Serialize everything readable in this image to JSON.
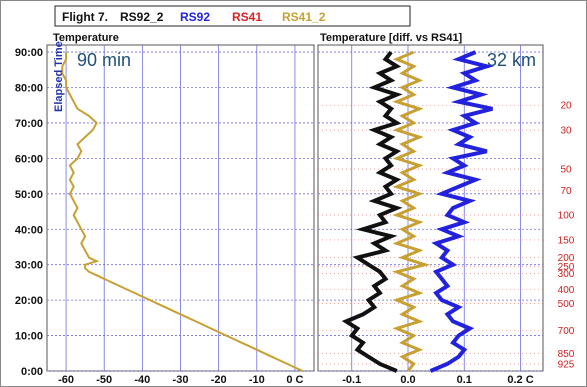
{
  "legend": {
    "flight": "Flight 7.",
    "items": [
      {
        "label": "RS92_2",
        "color": "#111111"
      },
      {
        "label": "RS92",
        "color": "#2222dd"
      },
      {
        "label": "RS41",
        "color": "#dd2222"
      },
      {
        "label": "RS41_2",
        "color": "#c8a032"
      }
    ]
  },
  "chart_data": [
    {
      "type": "line",
      "title": "Temperature",
      "annotation": "90 min",
      "ylabel": "Elapsed Time",
      "xunit_label": "0 C",
      "xticks": [
        -60,
        -50,
        -40,
        -30,
        -20,
        -10,
        0
      ],
      "xtick_labels": [
        "-60",
        "-50",
        "-40",
        "-30",
        "-20",
        "-10",
        "0 C"
      ],
      "xlim": [
        -65,
        5
      ],
      "ylim": [
        0,
        92
      ],
      "yticks": [
        0,
        10,
        20,
        30,
        40,
        50,
        60,
        70,
        80,
        90
      ],
      "ytick_labels": [
        "0:00",
        "10:00",
        "20:00",
        "30:00",
        "40:00",
        "50:00",
        "60:00",
        "70:00",
        "80:00",
        "90:00"
      ],
      "grid": true,
      "series": [
        {
          "name": "RS41_2",
          "color": "#c8a032",
          "points": [
            [
              2,
              0
            ],
            [
              0,
              1
            ],
            [
              -2,
              2
            ],
            [
              -4,
              3
            ],
            [
              -6,
              4
            ],
            [
              -8,
              5
            ],
            [
              -10,
              6
            ],
            [
              -12,
              7
            ],
            [
              -14,
              8
            ],
            [
              -16,
              9
            ],
            [
              -18,
              10
            ],
            [
              -20,
              11
            ],
            [
              -22,
              12
            ],
            [
              -24,
              13
            ],
            [
              -26,
              14
            ],
            [
              -28,
              15
            ],
            [
              -30,
              16
            ],
            [
              -32,
              17
            ],
            [
              -34,
              18
            ],
            [
              -36,
              19
            ],
            [
              -38,
              20
            ],
            [
              -40,
              21
            ],
            [
              -42,
              22
            ],
            [
              -44,
              23
            ],
            [
              -46,
              24
            ],
            [
              -48,
              25
            ],
            [
              -50,
              26
            ],
            [
              -52,
              27
            ],
            [
              -54,
              28
            ],
            [
              -55,
              29
            ],
            [
              -55,
              30
            ],
            [
              -52,
              31
            ],
            [
              -54,
              32
            ],
            [
              -55,
              34
            ],
            [
              -56,
              36
            ],
            [
              -55,
              38
            ],
            [
              -56,
              40
            ],
            [
              -57,
              42
            ],
            [
              -58,
              44
            ],
            [
              -57,
              46
            ],
            [
              -58,
              48
            ],
            [
              -59,
              50
            ],
            [
              -58,
              52
            ],
            [
              -59,
              54
            ],
            [
              -58,
              56
            ],
            [
              -59,
              58
            ],
            [
              -57,
              60
            ],
            [
              -56,
              62
            ],
            [
              -57,
              64
            ],
            [
              -55,
              66
            ],
            [
              -53,
              68
            ],
            [
              -52,
              70
            ],
            [
              -54,
              72
            ],
            [
              -57,
              74
            ],
            [
              -58,
              76
            ],
            [
              -59,
              78
            ],
            [
              -60,
              80
            ],
            [
              -60,
              82
            ],
            [
              -61,
              84
            ],
            [
              -61,
              86
            ],
            [
              -60,
              88
            ],
            [
              -60,
              90
            ]
          ]
        }
      ]
    },
    {
      "type": "line",
      "title": "Temperature [diff. vs RS41]",
      "annotation": "32 km",
      "xticks": [
        -0.1,
        0.0,
        0.1,
        0.2
      ],
      "xtick_labels": [
        "-0.1",
        "0.0",
        "0.1",
        "0.2 C"
      ],
      "xlim": [
        -0.16,
        0.24
      ],
      "ylim": [
        0,
        92
      ],
      "pressure_ticks": [
        {
          "label": "20",
          "t": 75
        },
        {
          "label": "30",
          "t": 68
        },
        {
          "label": "50",
          "t": 57
        },
        {
          "label": "70",
          "t": 51
        },
        {
          "label": "100",
          "t": 44
        },
        {
          "label": "150",
          "t": 37
        },
        {
          "label": "200",
          "t": 32
        },
        {
          "label": "250",
          "t": 29.5
        },
        {
          "label": "300",
          "t": 27.5
        },
        {
          "label": "400",
          "t": 23
        },
        {
          "label": "500",
          "t": 19
        },
        {
          "label": "700",
          "t": 11.5
        },
        {
          "label": "850",
          "t": 5
        },
        {
          "label": "925",
          "t": 2
        }
      ],
      "grid": true,
      "series": [
        {
          "name": "RS92",
          "color": "#2222dd",
          "points": [
            [
              0.04,
              0
            ],
            [
              0.07,
              2
            ],
            [
              0.09,
              4
            ],
            [
              0.1,
              6
            ],
            [
              0.08,
              8
            ],
            [
              0.09,
              10
            ],
            [
              0.11,
              12
            ],
            [
              0.08,
              14
            ],
            [
              0.07,
              16
            ],
            [
              0.09,
              18
            ],
            [
              0.06,
              20
            ],
            [
              0.05,
              22
            ],
            [
              0.07,
              24
            ],
            [
              0.06,
              26
            ],
            [
              0.05,
              28
            ],
            [
              0.08,
              30
            ],
            [
              0.06,
              32
            ],
            [
              0.07,
              34
            ],
            [
              0.05,
              36
            ],
            [
              0.09,
              38
            ],
            [
              0.06,
              40
            ],
            [
              0.1,
              42
            ],
            [
              0.07,
              44
            ],
            [
              0.08,
              46
            ],
            [
              0.11,
              48
            ],
            [
              0.06,
              50
            ],
            [
              0.09,
              52
            ],
            [
              0.12,
              54
            ],
            [
              0.07,
              56
            ],
            [
              0.1,
              58
            ],
            [
              0.08,
              60
            ],
            [
              0.14,
              62
            ],
            [
              0.09,
              64
            ],
            [
              0.11,
              66
            ],
            [
              0.08,
              68
            ],
            [
              0.12,
              70
            ],
            [
              0.1,
              72
            ],
            [
              0.15,
              74
            ],
            [
              0.09,
              76
            ],
            [
              0.13,
              78
            ],
            [
              0.08,
              80
            ],
            [
              0.12,
              82
            ],
            [
              0.1,
              84
            ],
            [
              0.14,
              86
            ],
            [
              0.09,
              88
            ],
            [
              0.12,
              90
            ]
          ]
        },
        {
          "name": "RS92_2",
          "color": "#111111",
          "points": [
            [
              -0.02,
              0
            ],
            [
              -0.05,
              2
            ],
            [
              -0.07,
              4
            ],
            [
              -0.09,
              6
            ],
            [
              -0.08,
              8
            ],
            [
              -0.1,
              10
            ],
            [
              -0.09,
              12
            ],
            [
              -0.11,
              14
            ],
            [
              -0.08,
              16
            ],
            [
              -0.06,
              18
            ],
            [
              -0.07,
              20
            ],
            [
              -0.05,
              22
            ],
            [
              -0.06,
              24
            ],
            [
              -0.04,
              26
            ],
            [
              -0.05,
              28
            ],
            [
              -0.07,
              30
            ],
            [
              -0.09,
              32
            ],
            [
              -0.04,
              34
            ],
            [
              -0.06,
              36
            ],
            [
              -0.03,
              38
            ],
            [
              -0.08,
              40
            ],
            [
              -0.04,
              42
            ],
            [
              -0.05,
              44
            ],
            [
              -0.02,
              46
            ],
            [
              -0.06,
              48
            ],
            [
              -0.03,
              50
            ],
            [
              -0.04,
              52
            ],
            [
              -0.02,
              54
            ],
            [
              -0.05,
              56
            ],
            [
              -0.03,
              58
            ],
            [
              -0.04,
              60
            ],
            [
              -0.02,
              62
            ],
            [
              -0.05,
              64
            ],
            [
              -0.03,
              66
            ],
            [
              -0.06,
              68
            ],
            [
              -0.02,
              70
            ],
            [
              -0.04,
              72
            ],
            [
              -0.03,
              74
            ],
            [
              -0.05,
              76
            ],
            [
              -0.02,
              78
            ],
            [
              -0.06,
              80
            ],
            [
              -0.03,
              82
            ],
            [
              -0.05,
              84
            ],
            [
              -0.02,
              86
            ],
            [
              -0.04,
              88
            ],
            [
              -0.03,
              90
            ]
          ]
        },
        {
          "name": "RS41_2",
          "color": "#c8a032",
          "points": [
            [
              0.0,
              0
            ],
            [
              0.01,
              2
            ],
            [
              -0.01,
              4
            ],
            [
              0.02,
              6
            ],
            [
              -0.01,
              8
            ],
            [
              0.01,
              10
            ],
            [
              -0.02,
              12
            ],
            [
              0.02,
              14
            ],
            [
              -0.01,
              16
            ],
            [
              0.01,
              18
            ],
            [
              -0.02,
              20
            ],
            [
              0.02,
              22
            ],
            [
              -0.01,
              24
            ],
            [
              0.01,
              26
            ],
            [
              -0.02,
              28
            ],
            [
              0.03,
              30
            ],
            [
              -0.01,
              32
            ],
            [
              0.02,
              34
            ],
            [
              -0.02,
              36
            ],
            [
              0.01,
              38
            ],
            [
              -0.01,
              40
            ],
            [
              0.02,
              42
            ],
            [
              -0.02,
              44
            ],
            [
              0.01,
              46
            ],
            [
              -0.01,
              48
            ],
            [
              0.02,
              50
            ],
            [
              -0.02,
              52
            ],
            [
              0.01,
              54
            ],
            [
              -0.01,
              56
            ],
            [
              0.02,
              58
            ],
            [
              -0.02,
              60
            ],
            [
              0.01,
              62
            ],
            [
              -0.01,
              64
            ],
            [
              0.02,
              66
            ],
            [
              -0.02,
              68
            ],
            [
              0.01,
              70
            ],
            [
              -0.01,
              72
            ],
            [
              0.02,
              74
            ],
            [
              -0.02,
              76
            ],
            [
              0.01,
              78
            ],
            [
              -0.01,
              80
            ],
            [
              0.02,
              82
            ],
            [
              -0.01,
              84
            ],
            [
              0.01,
              86
            ],
            [
              -0.02,
              88
            ],
            [
              0.01,
              90
            ]
          ]
        }
      ]
    }
  ]
}
